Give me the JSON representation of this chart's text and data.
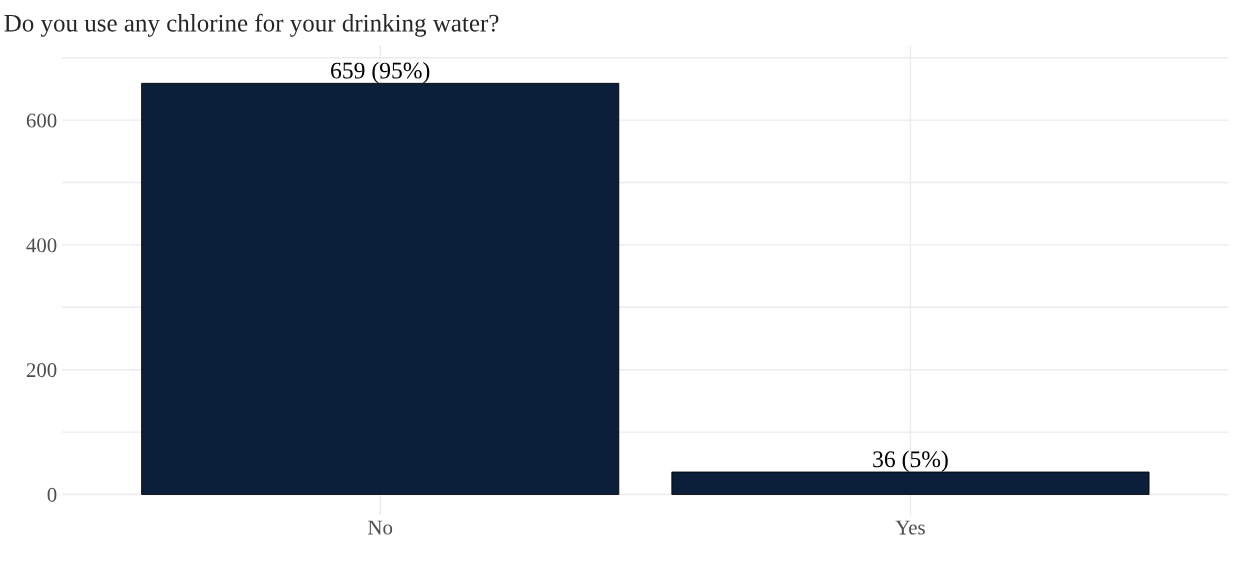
{
  "chart_data": {
    "type": "bar",
    "title": "Do you use any chlorine for your drinking water?",
    "categories": [
      "No",
      "Yes"
    ],
    "values": [
      659,
      36
    ],
    "color": "#0b1f3a",
    "value_labels": [
      "659 (95%)",
      "36 (5%)"
    ],
    "ylim": [
      -33,
      720
    ],
    "yticks": [
      0,
      {
        "value": 100,
        "label": null
      },
      200,
      {
        "value": 300,
        "label": null
      },
      400,
      {
        "value": 500,
        "label": null
      },
      600,
      {
        "value": 700,
        "label": null
      }
    ],
    "grid": true
  }
}
